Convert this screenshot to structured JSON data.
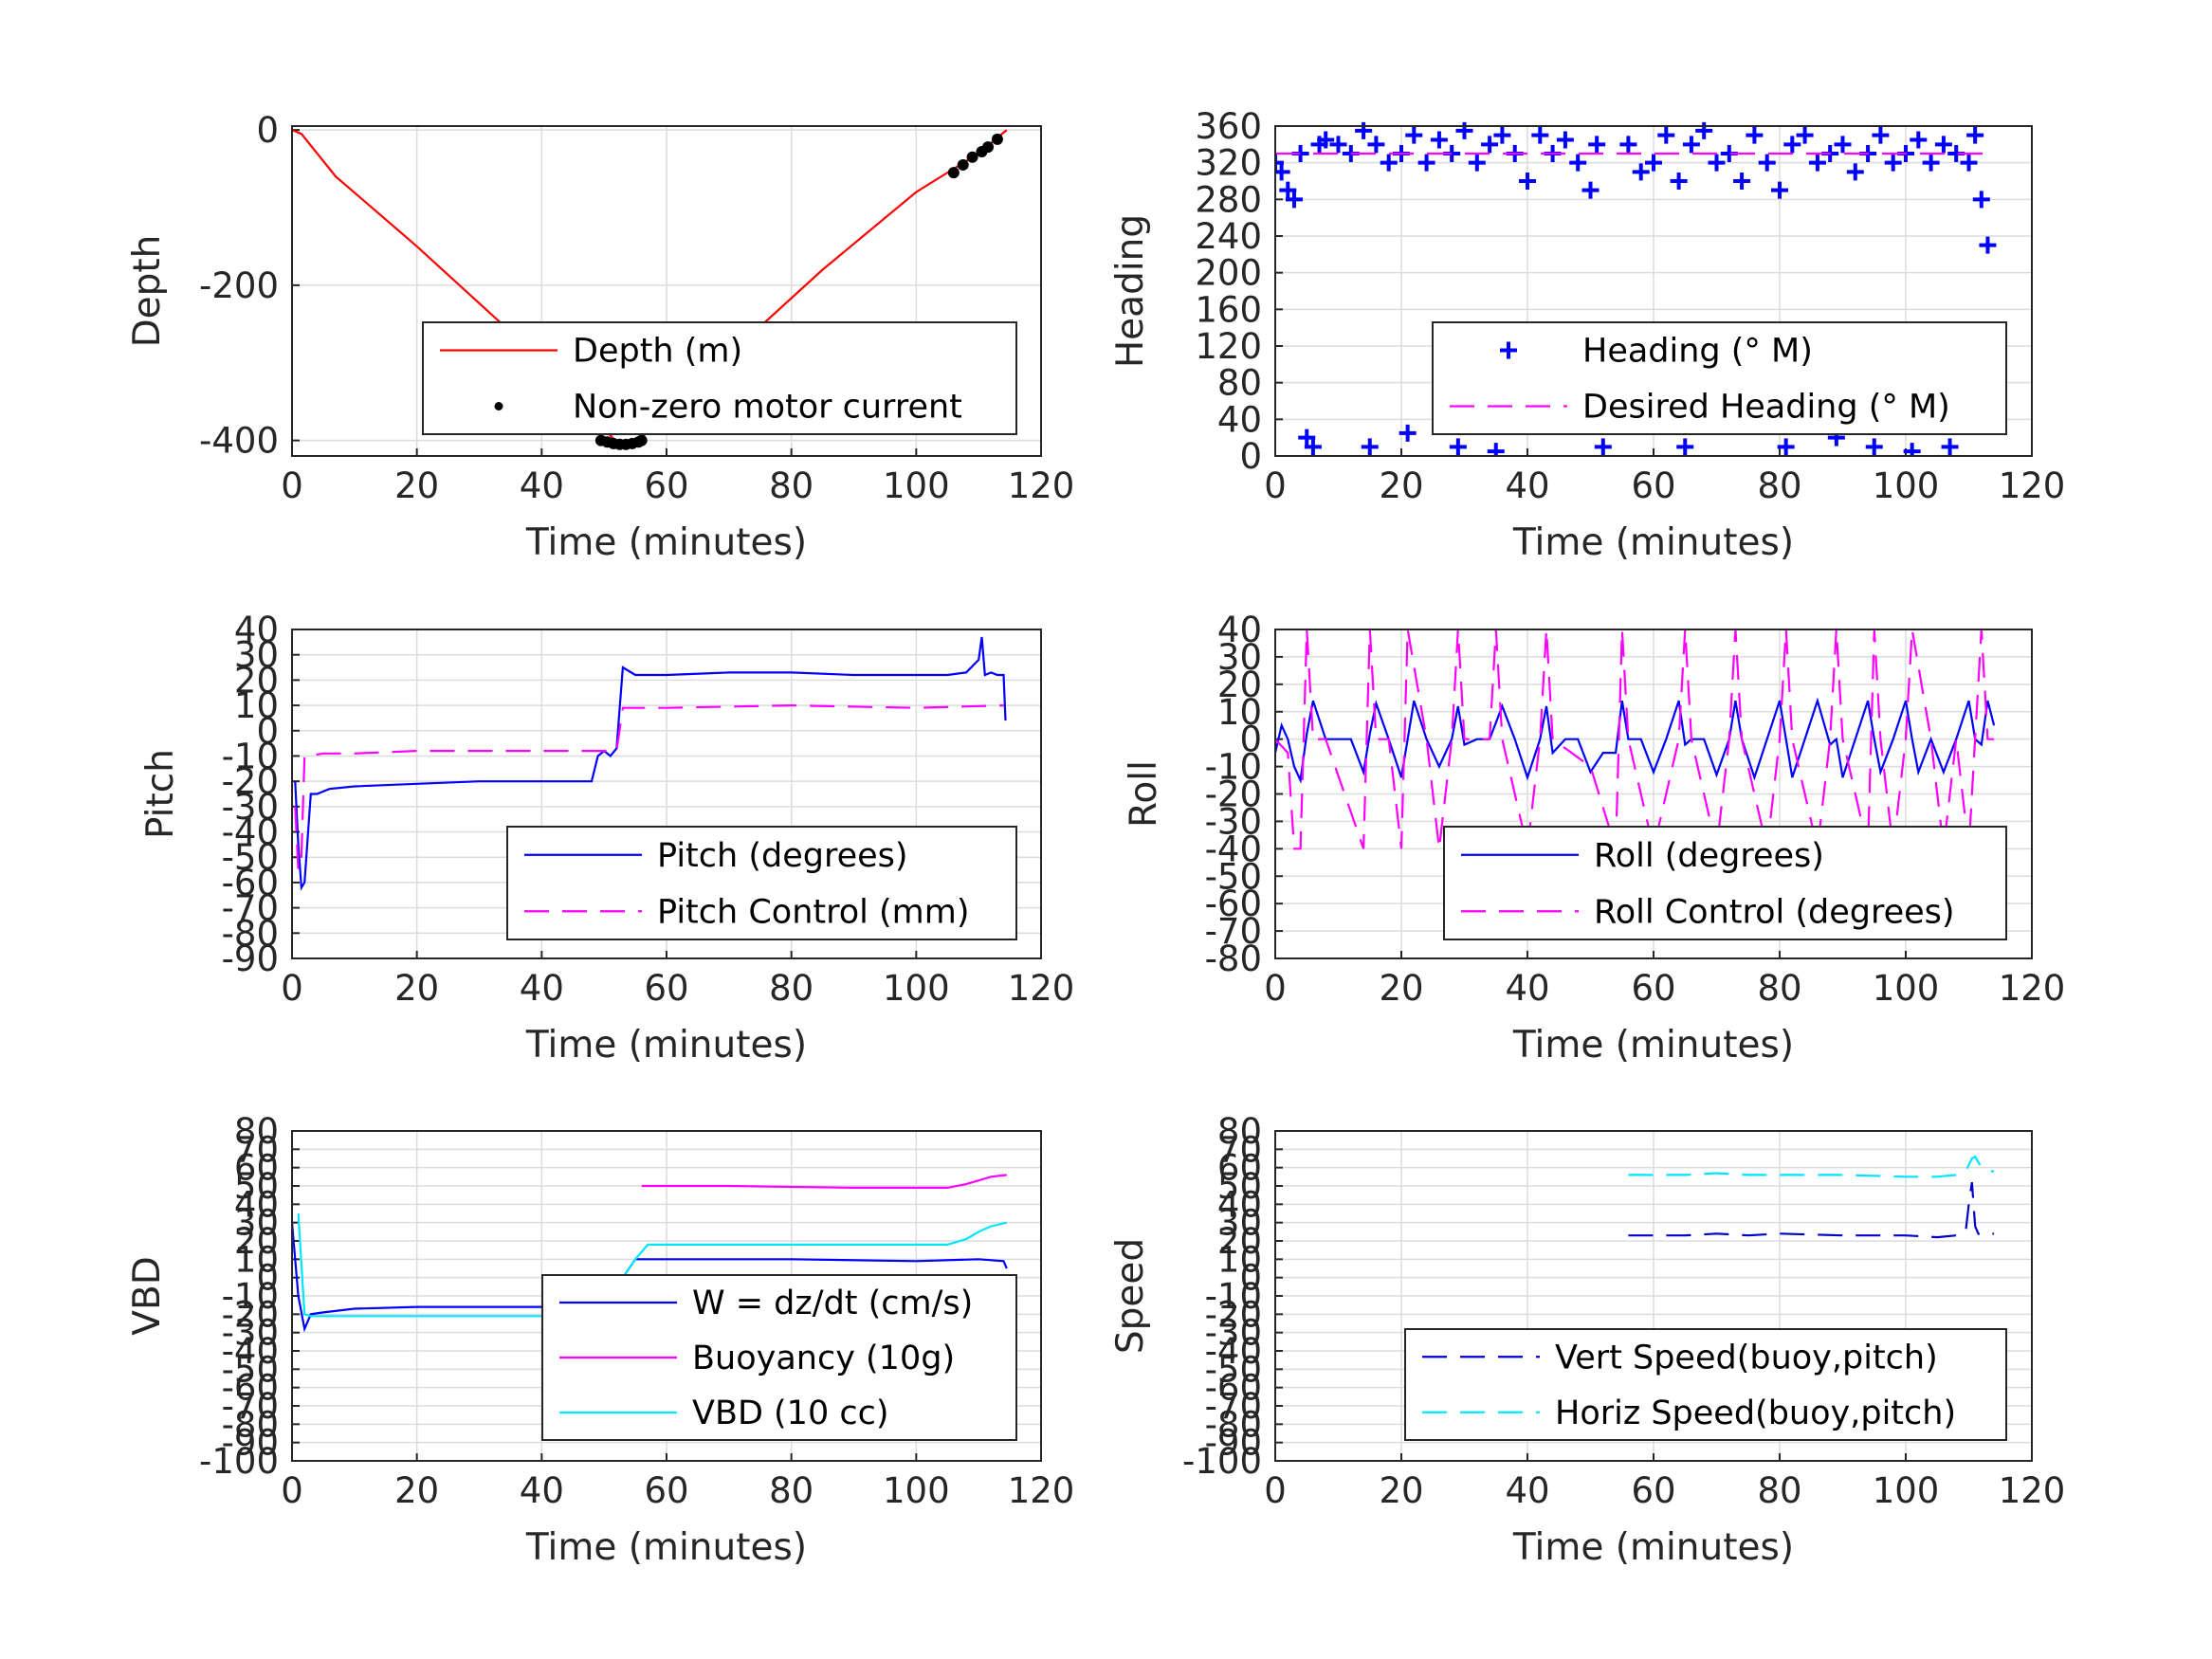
{
  "chart_data": [
    {
      "id": "depth",
      "type": "line",
      "xlabel": "Time (minutes)",
      "ylabel": "Depth",
      "xlim": [
        0,
        120
      ],
      "ylim": [
        -420,
        5
      ],
      "xticks": [
        0,
        20,
        40,
        60,
        80,
        100,
        120
      ],
      "yticks": [
        0,
        -200,
        -400
      ],
      "grid": true,
      "legend_placement": "bottom-right",
      "series": [
        {
          "name": "Depth (m)",
          "style": "solid",
          "color": "#ff0000",
          "x": [
            0,
            1.5,
            7,
            20,
            35,
            45,
            50,
            52,
            55,
            58,
            70,
            85,
            100,
            110,
            114.5
          ],
          "y": [
            0,
            -5,
            -60,
            -150,
            -260,
            -340,
            -385,
            -402,
            -400,
            -385,
            -290,
            -180,
            -80,
            -30,
            0
          ]
        },
        {
          "name": "Non-zero motor current",
          "style": "dots",
          "color": "#000000",
          "x": [
            49.5,
            50.5,
            51.5,
            52.5,
            53.5,
            54.5,
            55.5,
            56,
            106,
            107.5,
            109,
            110.5,
            111.5,
            113
          ],
          "y": [
            -400,
            -402,
            -404,
            -405,
            -405,
            -404,
            -402,
            -400,
            -55,
            -45,
            -35,
            -28,
            -22,
            -12
          ]
        }
      ]
    },
    {
      "id": "heading",
      "type": "scatter",
      "xlabel": "Time (minutes)",
      "ylabel": "Heading",
      "xlim": [
        0,
        120
      ],
      "ylim": [
        0,
        360
      ],
      "xticks": [
        0,
        20,
        40,
        60,
        80,
        100,
        120
      ],
      "yticks": [
        0,
        40,
        80,
        120,
        160,
        200,
        240,
        280,
        320,
        360
      ],
      "grid": true,
      "legend_placement": "bottom-right",
      "series": [
        {
          "name": "Heading (° M)",
          "style": "plus",
          "color": "#0000ff",
          "x": [
            0,
            1,
            2,
            3,
            4,
            5,
            6,
            7,
            8,
            10,
            12,
            14,
            15,
            16,
            18,
            20,
            21,
            22,
            24,
            26,
            28,
            29,
            30,
            32,
            34,
            35,
            36,
            38,
            40,
            42,
            43,
            44,
            46,
            48,
            50,
            51,
            52,
            54,
            56,
            58,
            60,
            62,
            64,
            65,
            66,
            68,
            70,
            72,
            73,
            74,
            76,
            78,
            80,
            81,
            82,
            84,
            86,
            88,
            89,
            90,
            92,
            94,
            95,
            96,
            98,
            100,
            101,
            102,
            104,
            106,
            107,
            108,
            110,
            111,
            112,
            113,
            114
          ],
          "y": [
            320,
            310,
            290,
            280,
            330,
            20,
            10,
            340,
            345,
            340,
            330,
            355,
            10,
            340,
            320,
            330,
            25,
            350,
            320,
            345,
            330,
            10,
            355,
            320,
            340,
            5,
            350,
            330,
            300,
            350,
            50,
            330,
            345,
            320,
            290,
            340,
            10,
            60,
            340,
            310,
            320,
            350,
            300,
            10,
            340,
            355,
            320,
            330,
            40,
            300,
            350,
            320,
            290,
            10,
            340,
            350,
            320,
            330,
            20,
            340,
            310,
            330,
            10,
            350,
            320,
            330,
            5,
            345,
            320,
            340,
            10,
            330,
            320,
            350,
            280,
            230,
            50
          ]
        },
        {
          "name": "Desired Heading (° M)",
          "style": "dashed",
          "color": "#ff00ff",
          "x": [
            0,
            114
          ],
          "y": [
            330,
            330
          ]
        }
      ]
    },
    {
      "id": "pitch",
      "type": "line",
      "xlabel": "Time (minutes)",
      "ylabel": "Pitch",
      "xlim": [
        0,
        120
      ],
      "ylim": [
        -90,
        40
      ],
      "xticks": [
        0,
        20,
        40,
        60,
        80,
        100,
        120
      ],
      "yticks": [
        40,
        30,
        20,
        10,
        0,
        -10,
        -20,
        -30,
        -40,
        -50,
        -60,
        -70,
        -80,
        -90
      ],
      "grid": true,
      "legend_placement": "bottom-right",
      "series": [
        {
          "name": "Pitch (degrees)",
          "style": "solid",
          "color": "#0000ff",
          "x": [
            0.5,
            1,
            1.5,
            2,
            3,
            4,
            6,
            10,
            20,
            30,
            40,
            48,
            49,
            50,
            51,
            52,
            53,
            55,
            60,
            70,
            80,
            90,
            100,
            105,
            108,
            110,
            110.5,
            111,
            112,
            113,
            114,
            114.3
          ],
          "y": [
            -20,
            -45,
            -62,
            -60,
            -25,
            -25,
            -23,
            -22,
            -21,
            -20,
            -20,
            -20,
            -10,
            -8,
            -10,
            -7,
            25,
            22,
            22,
            23,
            23,
            22,
            22,
            22,
            23,
            28,
            37,
            22,
            23,
            22,
            22,
            4
          ]
        },
        {
          "name": "Pitch Control (mm)",
          "style": "dashed",
          "color": "#ff00ff",
          "x": [
            0.5,
            1,
            1.5,
            2,
            2.5,
            5,
            10,
            20,
            30,
            40,
            50,
            52,
            53,
            60,
            80,
            100,
            114
          ],
          "y": [
            -30,
            -55,
            -50,
            -10,
            -10,
            -9,
            -9,
            -8,
            -8,
            -8,
            -8,
            -8,
            9,
            9,
            10,
            9,
            10
          ]
        }
      ]
    },
    {
      "id": "roll",
      "type": "line",
      "xlabel": "Time (minutes)",
      "ylabel": "Roll",
      "xlim": [
        0,
        120
      ],
      "ylim": [
        -80,
        40
      ],
      "xticks": [
        0,
        20,
        40,
        60,
        80,
        100,
        120
      ],
      "yticks": [
        40,
        30,
        20,
        10,
        0,
        -10,
        -20,
        -30,
        -40,
        -50,
        -60,
        -70,
        -80
      ],
      "grid": true,
      "legend_placement": "bottom-right",
      "series": [
        {
          "name": "Roll (degrees)",
          "style": "solid",
          "color": "#0000ff",
          "x": [
            0,
            1,
            2,
            3,
            4,
            5,
            6,
            8,
            10,
            12,
            14,
            15,
            16,
            18,
            20,
            21,
            22,
            24,
            26,
            28,
            29,
            30,
            32,
            34,
            36,
            38,
            40,
            42,
            43,
            44,
            46,
            48,
            50,
            52,
            54,
            55,
            56,
            58,
            60,
            62,
            64,
            65,
            66,
            68,
            70,
            72,
            73,
            74,
            76,
            78,
            80,
            81,
            82,
            84,
            86,
            88,
            89,
            90,
            92,
            94,
            95,
            96,
            98,
            100,
            101,
            102,
            104,
            106,
            108,
            110,
            111,
            112,
            113,
            114
          ],
          "y": [
            -5,
            5,
            0,
            -10,
            -15,
            2,
            14,
            0,
            0,
            0,
            -12,
            2,
            13,
            0,
            -14,
            0,
            14,
            0,
            -10,
            0,
            12,
            -2,
            0,
            0,
            12,
            0,
            -14,
            0,
            12,
            -5,
            0,
            0,
            -12,
            -5,
            -5,
            14,
            0,
            0,
            -12,
            0,
            14,
            -2,
            0,
            0,
            -13,
            0,
            14,
            0,
            -14,
            0,
            14,
            0,
            -14,
            0,
            14,
            -2,
            0,
            -14,
            0,
            14,
            0,
            -12,
            0,
            14,
            0,
            -12,
            0,
            -12,
            0,
            14,
            0,
            -2,
            14,
            5
          ]
        },
        {
          "name": "Roll Control (degrees)",
          "style": "dashed",
          "color": "#ff00ff",
          "x": [
            0,
            2,
            3,
            4,
            5,
            6,
            8,
            14,
            15,
            16,
            18,
            20,
            21,
            24,
            26,
            28,
            29,
            30,
            34,
            35,
            36,
            40,
            42,
            43,
            44,
            50,
            54,
            55,
            56,
            60,
            64,
            65,
            66,
            70,
            72,
            73,
            74,
            78,
            80,
            81,
            82,
            86,
            88,
            89,
            90,
            94,
            95,
            96,
            98,
            100,
            101,
            104,
            106,
            108,
            110,
            112,
            113,
            114
          ],
          "y": [
            0,
            -5,
            -40,
            -40,
            40,
            0,
            0,
            -40,
            40,
            0,
            0,
            -40,
            40,
            0,
            -40,
            0,
            40,
            0,
            0,
            40,
            0,
            -40,
            0,
            40,
            0,
            -10,
            -40,
            40,
            0,
            -40,
            0,
            40,
            0,
            -40,
            0,
            40,
            0,
            -40,
            0,
            40,
            0,
            -40,
            0,
            40,
            0,
            -40,
            40,
            0,
            -40,
            0,
            40,
            0,
            -40,
            0,
            -40,
            40,
            0,
            0
          ]
        }
      ]
    },
    {
      "id": "vbd",
      "type": "line",
      "xlabel": "Time (minutes)",
      "ylabel": "VBD",
      "xlim": [
        0,
        120
      ],
      "ylim": [
        -100,
        80
      ],
      "xticks": [
        0,
        20,
        40,
        60,
        80,
        100,
        120
      ],
      "yticks": [
        80,
        70,
        60,
        50,
        40,
        30,
        20,
        10,
        0,
        -10,
        -20,
        -30,
        -40,
        -50,
        -60,
        -70,
        -80,
        -90,
        -100
      ],
      "grid": true,
      "legend_placement": "bottom-right",
      "series": [
        {
          "name": "W = dz/dt (cm/s)",
          "style": "solid",
          "color": "#0000ff",
          "x": [
            0,
            1,
            2,
            3,
            5,
            10,
            20,
            30,
            40,
            48,
            50,
            52,
            55,
            60,
            80,
            100,
            110,
            114,
            114.5
          ],
          "y": [
            30,
            -10,
            -28,
            -20,
            -19,
            -17,
            -16,
            -16,
            -16,
            -16,
            -10,
            -5,
            10,
            10,
            10,
            9,
            10,
            9,
            5
          ]
        },
        {
          "name": "Buoyancy (10g)",
          "style": "solid",
          "color": "#ff00ff",
          "x": [
            56,
            70,
            90,
            105,
            108,
            110,
            112,
            114.5
          ],
          "y": [
            50,
            50,
            49,
            49,
            51,
            53,
            55,
            56
          ]
        },
        {
          "name": "VBD (10 cc)",
          "style": "solid",
          "color": "#00e5ff",
          "x": [
            1,
            2,
            3,
            5,
            10,
            20,
            30,
            40,
            49,
            52,
            55,
            57,
            60,
            80,
            100,
            105,
            108,
            110,
            112,
            114.5
          ],
          "y": [
            35,
            -20,
            -21,
            -21,
            -21,
            -21,
            -21,
            -21,
            -21,
            -5,
            10,
            18,
            18,
            18,
            18,
            18,
            21,
            25,
            28,
            30
          ]
        }
      ]
    },
    {
      "id": "speed",
      "type": "line",
      "xlabel": "Time (minutes)",
      "ylabel": "Speed",
      "xlim": [
        0,
        120
      ],
      "ylim": [
        -100,
        80
      ],
      "xticks": [
        0,
        20,
        40,
        60,
        80,
        100,
        120
      ],
      "yticks": [
        80,
        70,
        60,
        50,
        40,
        30,
        20,
        10,
        0,
        -10,
        -20,
        -30,
        -40,
        -50,
        -60,
        -70,
        -80,
        -90,
        -100
      ],
      "grid": true,
      "legend_placement": "bottom-right",
      "series": [
        {
          "name": "Vert Speed(buoy,pitch)",
          "style": "dashed",
          "color": "#0000cc",
          "x": [
            56,
            65,
            70,
            75,
            80,
            90,
            100,
            105,
            108,
            109.5,
            110,
            110.5,
            111,
            111.5,
            112,
            114
          ],
          "y": [
            23,
            23,
            24,
            23,
            24,
            23,
            23,
            22,
            23,
            25,
            40,
            52,
            28,
            24,
            23,
            24
          ]
        },
        {
          "name": "Horiz Speed(buoy,pitch)",
          "style": "dashed",
          "color": "#00e5ff",
          "x": [
            56,
            65,
            70,
            75,
            80,
            90,
            100,
            105,
            108,
            109.5,
            110.5,
            111,
            112,
            113,
            114
          ],
          "y": [
            56,
            56,
            57,
            56,
            56,
            56,
            55,
            55,
            56,
            58,
            65,
            66,
            60,
            58,
            58
          ]
        }
      ]
    }
  ]
}
